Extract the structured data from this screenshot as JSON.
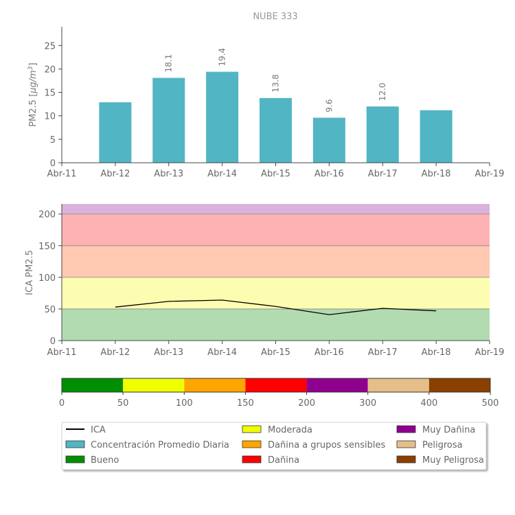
{
  "chart_data": [
    {
      "type": "bar",
      "title": "NUBE 333",
      "ylabel": "PM2.5 [μg/m³]",
      "ylabel_text": "PM2.5 [",
      "ylabel_unit": "μg/m",
      "ylabel_exp": "3",
      "ylabel_close": "]",
      "x_ticks": [
        "Abr-11",
        "Abr-12",
        "Abr-13",
        "Abr-14",
        "Abr-15",
        "Abr-16",
        "Abr-17",
        "Abr-18",
        "Abr-19"
      ],
      "y_ticks": [
        0,
        5,
        10,
        15,
        20,
        25
      ],
      "ylim": [
        0,
        29
      ],
      "categories": [
        "Abr-12",
        "Abr-13",
        "Abr-14",
        "Abr-15",
        "Abr-16",
        "Abr-17",
        "Abr-18"
      ],
      "values": [
        12.9,
        18.1,
        19.4,
        13.8,
        9.6,
        12.0,
        11.2
      ],
      "data_labels": [
        "",
        "18.1",
        "19.4",
        "13.8",
        "9.6",
        "12.0",
        ""
      ],
      "color": "#52b5c4"
    },
    {
      "type": "line",
      "ylabel": "ICA PM2.5",
      "x_ticks": [
        "Abr-11",
        "Abr-12",
        "Abr-13",
        "Abr-14",
        "Abr-15",
        "Abr-16",
        "Abr-17",
        "Abr-18",
        "Abr-19"
      ],
      "y_ticks": [
        0,
        50,
        100,
        150,
        200
      ],
      "ylim": [
        0,
        216
      ],
      "x": [
        "Abr-12",
        "Abr-13",
        "Abr-14",
        "Abr-15",
        "Abr-16",
        "Abr-17",
        "Abr-18"
      ],
      "values": [
        53,
        62,
        64,
        54,
        41,
        51,
        47
      ],
      "line_color": "#000000",
      "bands": [
        {
          "from": 0,
          "to": 50,
          "color": "#b2dbb2"
        },
        {
          "from": 50,
          "to": 100,
          "color": "#fdfdb2"
        },
        {
          "from": 100,
          "to": 150,
          "color": "#ffc9b2"
        },
        {
          "from": 150,
          "to": 200,
          "color": "#ffb2b2"
        },
        {
          "from": 200,
          "to": 216,
          "color": "#dbb2db"
        }
      ]
    },
    {
      "type": "colorbar",
      "ticks": [
        "0",
        "50",
        "100",
        "150",
        "200",
        "300",
        "400",
        "500"
      ],
      "colors": [
        "#008f00",
        "#efff00",
        "#ffa500",
        "#ff0000",
        "#8f008f",
        "#e6be8a",
        "#8b4000"
      ]
    }
  ],
  "legend": {
    "items": [
      {
        "label": "ICA",
        "kind": "line",
        "color": "#000000"
      },
      {
        "label": "Concentración Promedio Diaria",
        "kind": "box",
        "color": "#52b5c4"
      },
      {
        "label": "Bueno",
        "kind": "box",
        "color": "#008f00"
      },
      {
        "label": "Moderada",
        "kind": "box",
        "color": "#efff00"
      },
      {
        "label": "Dañina a grupos sensibles",
        "kind": "box",
        "color": "#ffa500"
      },
      {
        "label": "Dañina",
        "kind": "box",
        "color": "#ff0000"
      },
      {
        "label": "Muy Dañina",
        "kind": "box",
        "color": "#8f008f"
      },
      {
        "label": "Peligrosa",
        "kind": "box",
        "color": "#e6be8a"
      },
      {
        "label": "Muy Peligrosa",
        "kind": "box",
        "color": "#8b4000"
      }
    ]
  }
}
